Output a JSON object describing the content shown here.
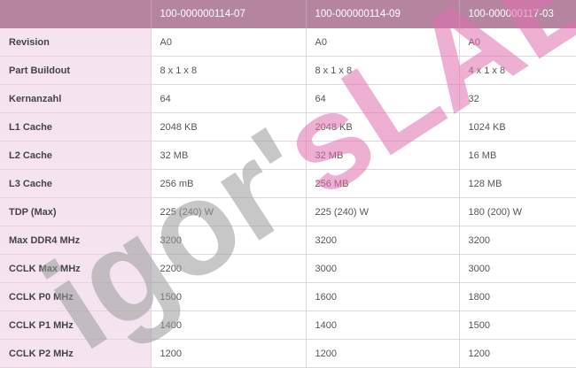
{
  "columns": [
    "",
    "100-000000114-07",
    "100-000000114-09",
    "100-000000117-03"
  ],
  "rows": [
    {
      "label": "Revision",
      "values": [
        "A0",
        "A0",
        "A0"
      ]
    },
    {
      "label": "Part Buildout",
      "values": [
        "8 x 1 x 8",
        "8 x 1 x 8",
        "4 x 1 x 8"
      ]
    },
    {
      "label": "Kernanzahl",
      "values": [
        "64",
        "64",
        "32"
      ]
    },
    {
      "label": "L1 Cache",
      "values": [
        "2048 KB",
        "2048 KB",
        "1024 KB"
      ]
    },
    {
      "label": "L2 Cache",
      "values": [
        "32 MB",
        "32 MB",
        "16 MB"
      ]
    },
    {
      "label": "L3 Cache",
      "values": [
        "256 mB",
        "256 MB",
        "128 MB"
      ]
    },
    {
      "label": "TDP (Max)",
      "values": [
        "225 (240) W",
        "225 (240) W",
        "180 (200) W"
      ]
    },
    {
      "label": "Max DDR4 MHz",
      "values": [
        "3200",
        "3200",
        "3200"
      ]
    },
    {
      "label": "CCLK Max MHz",
      "values": [
        "2200",
        "3000",
        "3000"
      ]
    },
    {
      "label": "CCLK P0 MHz",
      "values": [
        "1500",
        "1600",
        "1800"
      ]
    },
    {
      "label": "CCLK P1 MHz",
      "values": [
        "1400",
        "1400",
        "1500"
      ]
    },
    {
      "label": "CCLK P2 MHz",
      "values": [
        "1200",
        "1200",
        "1200"
      ]
    }
  ],
  "watermark": {
    "part1": "igor'",
    "part2": "sLAB",
    "color1": "#9a9a9a",
    "color2": "#e070b0"
  },
  "colors": {
    "header": "#b5849f",
    "label_bg": "#f5e4ef"
  }
}
